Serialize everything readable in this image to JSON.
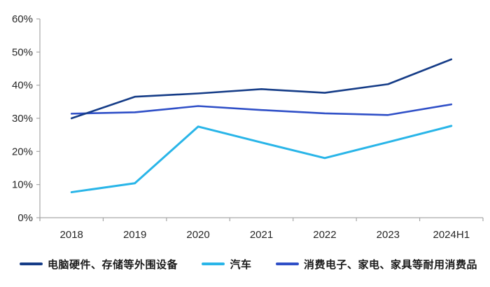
{
  "chart_data": {
    "type": "line",
    "categories": [
      "2018",
      "2019",
      "2020",
      "2021",
      "2022",
      "2023",
      "2024H1"
    ],
    "series": [
      {
        "name": "电脑硬件、存储等外围设备",
        "color": "#153c87",
        "values": [
          30.0,
          36.5,
          37.5,
          38.8,
          37.7,
          40.3,
          47.8
        ]
      },
      {
        "name": "汽车",
        "color": "#29b5e8",
        "values": [
          7.7,
          10.4,
          27.5,
          22.7,
          18.0,
          22.8,
          27.7
        ]
      },
      {
        "name": "消费电子、家电、家具等耐用消费品",
        "color": "#2f4fc7",
        "values": [
          31.4,
          31.8,
          33.7,
          32.5,
          31.5,
          31.0,
          34.2
        ]
      }
    ],
    "title": "",
    "xlabel": "",
    "ylabel": "",
    "ylim": [
      0,
      60
    ],
    "y_ticks": [
      "0%",
      "10%",
      "20%",
      "30%",
      "40%",
      "50%",
      "60%"
    ],
    "grid": false,
    "legend_position": "bottom",
    "axis_color": "#a6a6a6",
    "tick_label_color": "#262626"
  }
}
